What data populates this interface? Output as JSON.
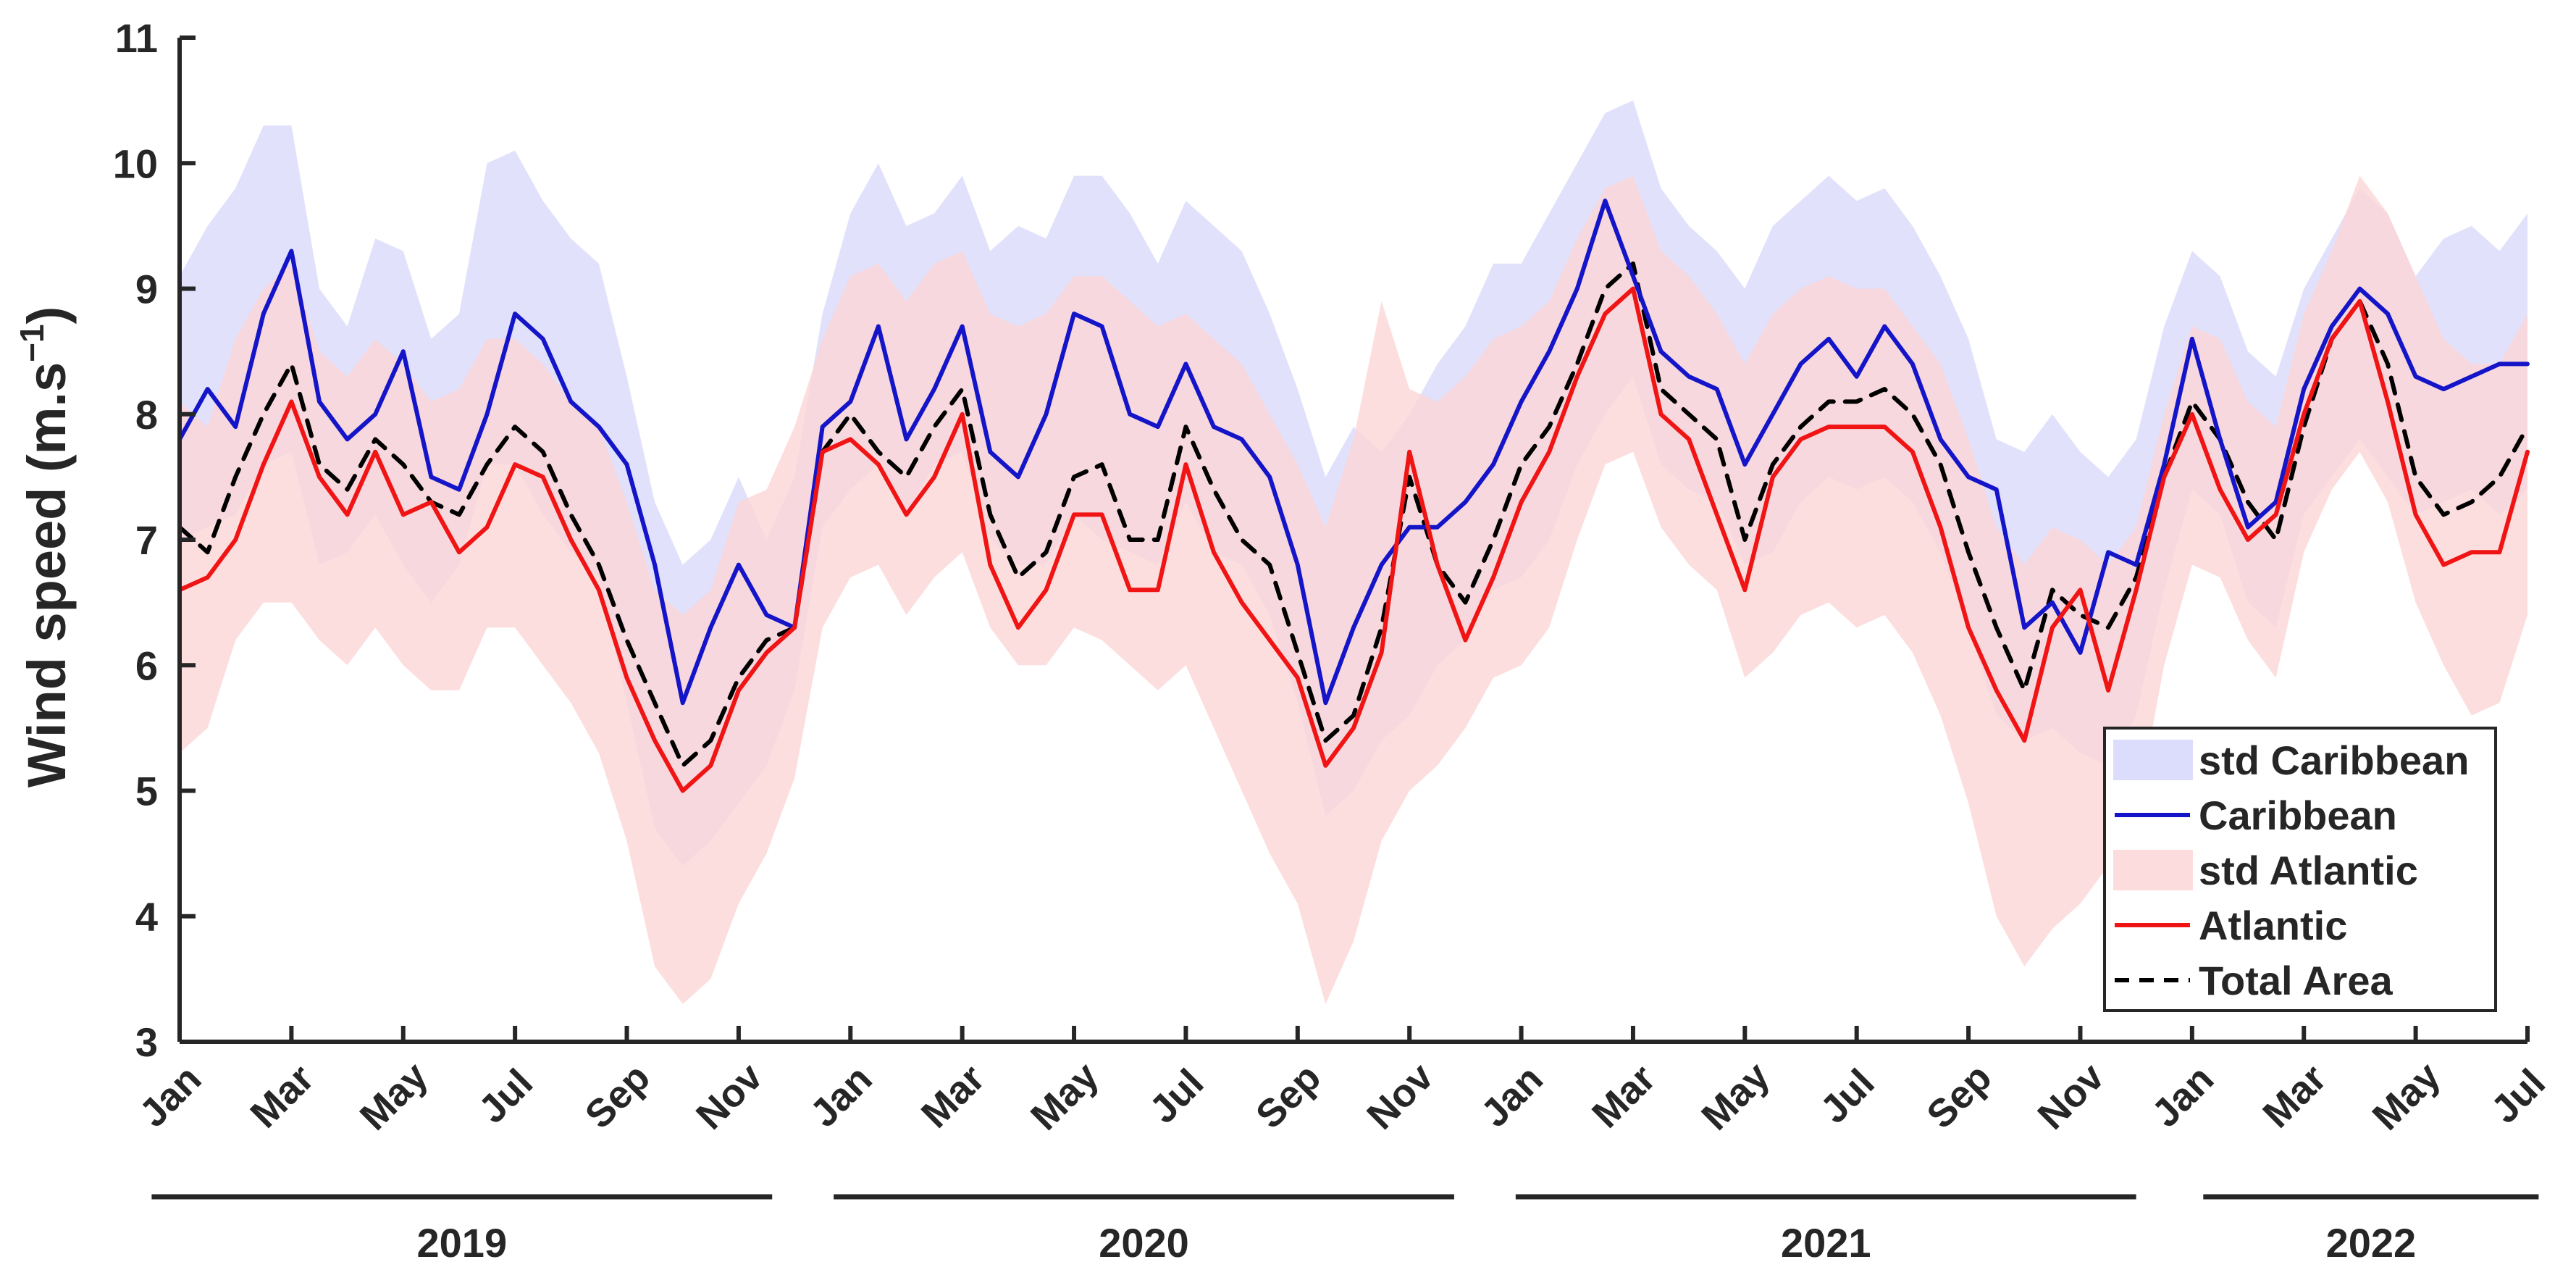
{
  "chart_data": {
    "type": "line",
    "title": "",
    "xlabel": "",
    "ylabel": "Wind speed (m.s",
    "ylabel_sup": "−1",
    "ylabel_close": ")",
    "ylim": [
      3,
      11
    ],
    "yticks": [
      3,
      4,
      5,
      6,
      7,
      8,
      9,
      10,
      11
    ],
    "xlim": [
      0,
      42
    ],
    "x_unit": "months since Jan 2019",
    "xticks": [
      {
        "x": 0,
        "label": "Jan"
      },
      {
        "x": 2,
        "label": "Mar"
      },
      {
        "x": 4,
        "label": "May"
      },
      {
        "x": 6,
        "label": "Jul"
      },
      {
        "x": 8,
        "label": "Sep"
      },
      {
        "x": 10,
        "label": "Nov"
      },
      {
        "x": 12,
        "label": "Jan"
      },
      {
        "x": 14,
        "label": "Mar"
      },
      {
        "x": 16,
        "label": "May"
      },
      {
        "x": 18,
        "label": "Jul"
      },
      {
        "x": 20,
        "label": "Sep"
      },
      {
        "x": 22,
        "label": "Nov"
      },
      {
        "x": 24,
        "label": "Jan"
      },
      {
        "x": 26,
        "label": "Mar"
      },
      {
        "x": 28,
        "label": "May"
      },
      {
        "x": 30,
        "label": "Jul"
      },
      {
        "x": 32,
        "label": "Sep"
      },
      {
        "x": 34,
        "label": "Nov"
      },
      {
        "x": 36,
        "label": "Jan"
      },
      {
        "x": 38,
        "label": "Mar"
      },
      {
        "x": 40,
        "label": "May"
      },
      {
        "x": 42,
        "label": "Jul"
      }
    ],
    "years": [
      {
        "label": "2019",
        "start": -0.5,
        "end": 10.6
      },
      {
        "label": "2020",
        "start": 11.7,
        "end": 22.8
      },
      {
        "label": "2021",
        "start": 23.9,
        "end": 35.0
      },
      {
        "label": "2022",
        "start": 36.2,
        "end": 42.2
      }
    ],
    "legend": {
      "position": "bottom-right",
      "entries": [
        {
          "label": "std Caribbean",
          "kind": "patch",
          "color": "#dcdcfc"
        },
        {
          "label": "Caribbean",
          "kind": "line",
          "color": "#1414c8"
        },
        {
          "label": "std Atlantic",
          "kind": "patch",
          "color": "#fcdcdc"
        },
        {
          "label": "Atlantic",
          "kind": "line",
          "color": "#f01414"
        },
        {
          "label": "Total Area",
          "kind": "dashed",
          "color": "#000000"
        }
      ]
    },
    "x": [
      0,
      0.5,
      1,
      1.5,
      2,
      2.5,
      3,
      3.5,
      4,
      4.5,
      5,
      5.5,
      6,
      6.5,
      7,
      7.5,
      8,
      8.5,
      9,
      9.5,
      10,
      10.5,
      11,
      11.5,
      12,
      12.5,
      13,
      13.5,
      14,
      14.5,
      15,
      15.5,
      16,
      16.5,
      17,
      17.5,
      18,
      18.5,
      19,
      19.5,
      20,
      20.5,
      21,
      21.5,
      22,
      22.5,
      23,
      23.5,
      24,
      24.5,
      25,
      25.5,
      26,
      26.5,
      27,
      27.5,
      28,
      28.5,
      29,
      29.5,
      30,
      30.5,
      31,
      31.5,
      32,
      32.5,
      33,
      33.5,
      34,
      34.5,
      35,
      35.5,
      36,
      36.5,
      37,
      37.5,
      38,
      38.5,
      39,
      39.5,
      40,
      40.5,
      41,
      41.5,
      42
    ],
    "series": [
      {
        "name": "std Caribbean",
        "kind": "band",
        "color": "#dcdcfc",
        "opacity": 0.85,
        "upper": [
          9.1,
          9.5,
          9.8,
          10.3,
          10.3,
          9.0,
          8.7,
          9.4,
          9.3,
          8.6,
          8.8,
          10.0,
          10.1,
          9.7,
          9.4,
          9.2,
          8.3,
          7.3,
          6.8,
          7.0,
          7.5,
          7.0,
          7.5,
          8.8,
          9.6,
          10.0,
          9.5,
          9.6,
          9.9,
          9.3,
          9.5,
          9.4,
          9.9,
          9.9,
          9.6,
          9.2,
          9.7,
          9.5,
          9.3,
          8.8,
          8.2,
          7.5,
          7.9,
          7.7,
          8.0,
          8.4,
          8.7,
          9.2,
          9.2,
          9.6,
          10.0,
          10.4,
          10.5,
          9.8,
          9.5,
          9.3,
          9.0,
          9.5,
          9.7,
          9.9,
          9.7,
          9.8,
          9.5,
          9.1,
          8.6,
          7.8,
          7.7,
          8.0,
          7.7,
          7.5,
          7.8,
          8.7,
          9.3,
          9.1,
          8.5,
          8.3,
          9.0,
          9.4,
          9.8,
          9.6,
          9.1,
          9.4,
          9.5,
          9.3,
          9.6
        ],
        "lower": [
          7.0,
          7.1,
          7.2,
          7.6,
          7.7,
          6.8,
          6.9,
          7.2,
          6.8,
          6.5,
          6.8,
          7.6,
          7.6,
          7.2,
          6.9,
          6.7,
          5.7,
          4.7,
          4.4,
          4.6,
          4.9,
          5.2,
          5.8,
          7.1,
          7.4,
          7.6,
          7.2,
          7.6,
          7.7,
          7.0,
          6.8,
          6.8,
          7.2,
          7.0,
          6.9,
          6.8,
          7.3,
          6.9,
          6.8,
          6.4,
          5.7,
          4.8,
          5.0,
          5.4,
          5.6,
          6.0,
          6.2,
          6.6,
          6.7,
          7.0,
          7.6,
          8.0,
          8.3,
          7.6,
          7.4,
          7.3,
          6.8,
          6.9,
          7.3,
          7.5,
          7.4,
          7.5,
          7.3,
          6.9,
          6.3,
          5.6,
          5.4,
          5.5,
          5.3,
          5.2,
          5.6,
          6.6,
          7.4,
          7.2,
          6.5,
          6.3,
          7.2,
          7.5,
          7.8,
          7.5,
          7.2,
          7.3,
          7.4,
          7.2,
          7.4
        ]
      },
      {
        "name": "std Atlantic",
        "kind": "band",
        "color": "#fcd6d6",
        "opacity": 0.8,
        "upper": [
          8.1,
          7.9,
          8.6,
          9.0,
          9.2,
          8.5,
          8.3,
          8.6,
          8.4,
          8.1,
          8.2,
          8.6,
          8.6,
          8.4,
          8.1,
          7.9,
          7.3,
          6.6,
          6.4,
          6.6,
          7.3,
          7.4,
          7.9,
          8.6,
          9.1,
          9.2,
          8.9,
          9.2,
          9.3,
          8.8,
          8.7,
          8.8,
          9.1,
          9.1,
          8.9,
          8.7,
          8.8,
          8.6,
          8.4,
          8.0,
          7.6,
          7.1,
          7.8,
          8.9,
          8.2,
          8.1,
          8.3,
          8.6,
          8.7,
          8.9,
          9.4,
          9.8,
          9.9,
          9.3,
          9.1,
          8.8,
          8.4,
          8.8,
          9.0,
          9.1,
          9.0,
          9.0,
          8.7,
          8.4,
          7.8,
          7.1,
          6.8,
          7.1,
          7.0,
          6.8,
          7.1,
          8.0,
          8.7,
          8.6,
          8.1,
          7.9,
          8.8,
          9.3,
          9.9,
          9.6,
          9.1,
          8.6,
          8.4,
          8.4,
          8.8
        ],
        "lower": [
          5.3,
          5.5,
          6.2,
          6.5,
          6.5,
          6.2,
          6.0,
          6.3,
          6.0,
          5.8,
          5.8,
          6.3,
          6.3,
          6.0,
          5.7,
          5.3,
          4.6,
          3.6,
          3.3,
          3.5,
          4.1,
          4.5,
          5.1,
          6.3,
          6.7,
          6.8,
          6.4,
          6.7,
          6.9,
          6.3,
          6.0,
          6.0,
          6.3,
          6.2,
          6.0,
          5.8,
          6.0,
          5.5,
          5.0,
          4.5,
          4.1,
          3.3,
          3.8,
          4.6,
          5.0,
          5.2,
          5.5,
          5.9,
          6.0,
          6.3,
          7.0,
          7.6,
          7.7,
          7.1,
          6.8,
          6.6,
          5.9,
          6.1,
          6.4,
          6.5,
          6.3,
          6.4,
          6.1,
          5.6,
          4.9,
          4.0,
          3.6,
          3.9,
          4.1,
          4.4,
          4.8,
          6.0,
          6.8,
          6.7,
          6.2,
          5.9,
          6.9,
          7.4,
          7.7,
          7.3,
          6.5,
          6.0,
          5.6,
          5.7,
          6.4
        ]
      },
      {
        "name": "Total Area",
        "kind": "dashed",
        "color": "#000000",
        "values": [
          7.1,
          6.9,
          7.5,
          8.0,
          8.4,
          7.6,
          7.4,
          7.8,
          7.6,
          7.3,
          7.2,
          7.6,
          7.9,
          7.7,
          7.2,
          6.8,
          6.2,
          5.7,
          5.2,
          5.4,
          5.9,
          6.2,
          6.3,
          7.7,
          8.0,
          7.7,
          7.5,
          7.9,
          8.2,
          7.2,
          6.7,
          6.9,
          7.5,
          7.6,
          7.0,
          7.0,
          7.9,
          7.4,
          7.0,
          6.8,
          6.1,
          5.4,
          5.6,
          6.3,
          7.5,
          6.8,
          6.5,
          7.0,
          7.6,
          7.9,
          8.4,
          9.0,
          9.2,
          8.2,
          8.0,
          7.8,
          7.0,
          7.6,
          7.9,
          8.1,
          8.1,
          8.2,
          8.0,
          7.6,
          6.9,
          6.3,
          5.8,
          6.6,
          6.4,
          6.3,
          6.7,
          7.5,
          8.1,
          7.8,
          7.3,
          7.0,
          7.9,
          8.6,
          8.9,
          8.4,
          7.5,
          7.2,
          7.3,
          7.5,
          7.9
        ]
      },
      {
        "name": "Caribbean",
        "kind": "line",
        "color": "#1414c8",
        "values": [
          7.8,
          8.2,
          7.9,
          8.8,
          9.3,
          8.1,
          7.8,
          8.0,
          8.5,
          7.5,
          7.4,
          8.0,
          8.8,
          8.6,
          8.1,
          7.9,
          7.6,
          6.8,
          5.7,
          6.3,
          6.8,
          6.4,
          6.3,
          7.9,
          8.1,
          8.7,
          7.8,
          8.2,
          8.7,
          7.7,
          7.5,
          8.0,
          8.8,
          8.7,
          8.0,
          7.9,
          8.4,
          7.9,
          7.8,
          7.5,
          6.8,
          5.7,
          6.3,
          6.8,
          7.1,
          7.1,
          7.3,
          7.6,
          8.1,
          8.5,
          9.0,
          9.7,
          9.1,
          8.5,
          8.3,
          8.2,
          7.6,
          8.0,
          8.4,
          8.6,
          8.3,
          8.7,
          8.4,
          7.8,
          7.5,
          7.4,
          6.3,
          6.5,
          6.1,
          6.9,
          6.8,
          7.6,
          8.6,
          7.8,
          7.1,
          7.3,
          8.2,
          8.7,
          9.0,
          8.8,
          8.3,
          8.2,
          8.3,
          8.4,
          8.4
        ]
      },
      {
        "name": "Atlantic",
        "kind": "line",
        "color": "#f01414",
        "values": [
          6.6,
          6.7,
          7.0,
          7.6,
          8.1,
          7.5,
          7.2,
          7.7,
          7.2,
          7.3,
          6.9,
          7.1,
          7.6,
          7.5,
          7.0,
          6.6,
          5.9,
          5.4,
          5.0,
          5.2,
          5.8,
          6.1,
          6.3,
          7.7,
          7.8,
          7.6,
          7.2,
          7.5,
          8.0,
          6.8,
          6.3,
          6.6,
          7.2,
          7.2,
          6.6,
          6.6,
          7.6,
          6.9,
          6.5,
          6.2,
          5.9,
          5.2,
          5.5,
          6.1,
          7.7,
          6.8,
          6.2,
          6.7,
          7.3,
          7.7,
          8.3,
          8.8,
          9.0,
          8.0,
          7.8,
          7.2,
          6.6,
          7.5,
          7.8,
          7.9,
          7.9,
          7.9,
          7.7,
          7.1,
          6.3,
          5.8,
          5.4,
          6.3,
          6.6,
          5.8,
          6.6,
          7.5,
          8.0,
          7.4,
          7.0,
          7.2,
          8.0,
          8.6,
          8.9,
          8.1,
          7.2,
          6.8,
          6.9,
          6.9,
          7.7
        ]
      }
    ]
  }
}
